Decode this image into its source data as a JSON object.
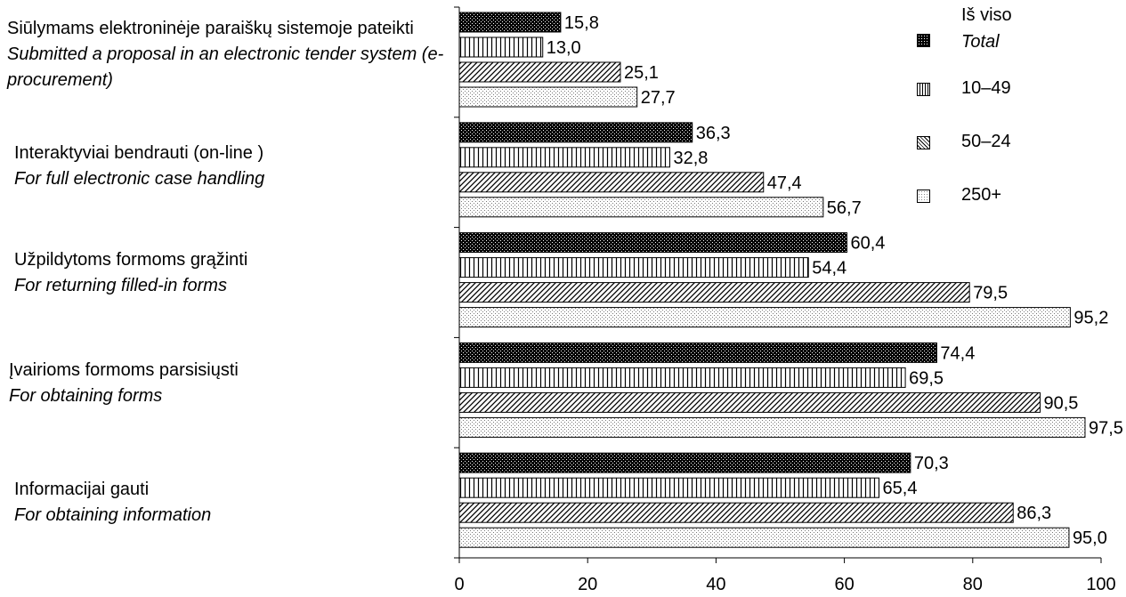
{
  "chart_data": {
    "type": "bar",
    "orientation": "horizontal",
    "categories": [
      {
        "lt": "Siūlymams elektroninėje paraiškų sistemoje pateikti",
        "en": "Submitted a proposal in an electronic tender system (e-procurement)"
      },
      {
        "lt": "Interaktyviai bendrauti (on-line )",
        "en": "For full electronic case handling"
      },
      {
        "lt": "Užpildytoms formoms grąžinti",
        "en": "For returning filled-in forms"
      },
      {
        "lt": "Įvairioms formoms parsisiųsti",
        "en": "For obtaining forms"
      },
      {
        "lt": "Informacijai gauti",
        "en": "For obtaining information"
      }
    ],
    "series": [
      {
        "name": "Iš viso",
        "name_en": "Total",
        "pattern": "dotted-dark",
        "values": [
          15.8,
          36.3,
          60.4,
          74.4,
          70.3
        ],
        "labels": [
          "15,8",
          "36,3",
          "60,4",
          "74,4",
          "70,3"
        ]
      },
      {
        "name": "10–49",
        "pattern": "vertical-lines",
        "values": [
          13.0,
          32.8,
          54.4,
          69.5,
          65.4
        ],
        "labels": [
          "13,0",
          "32,8",
          "54,4",
          "69,5",
          "65,4"
        ]
      },
      {
        "name": "50–24",
        "pattern": "diagonal-lines",
        "values": [
          25.1,
          47.4,
          79.5,
          90.5,
          86.3
        ],
        "labels": [
          "25,1",
          "47,4",
          "79,5",
          "90,5",
          "86,3"
        ]
      },
      {
        "name": "250+",
        "pattern": "light-dots",
        "values": [
          27.7,
          56.7,
          95.2,
          97.5,
          95.0
        ],
        "labels": [
          "27,7",
          "56,7",
          "95,2",
          "97,5",
          "95,0"
        ]
      }
    ],
    "xlim": [
      0,
      100
    ],
    "xticks": [
      0,
      20,
      40,
      60,
      80,
      100
    ],
    "xtick_labels": [
      "0",
      "20",
      "40",
      "60",
      "80",
      "100"
    ],
    "grid": false,
    "legend_position": "top-right"
  }
}
